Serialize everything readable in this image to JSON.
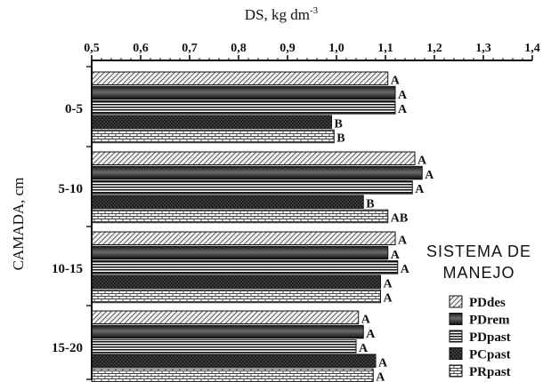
{
  "chart_data": {
    "type": "bar",
    "orientation": "horizontal",
    "xlabel": "DS, kg dm",
    "xlabel_superscript": "-3",
    "ylabel": "CAMADA, cm",
    "xlim": [
      0.5,
      1.4
    ],
    "xticks": [
      "0,5",
      "0,6",
      "0,7",
      "0,8",
      "0,9",
      "1,0",
      "1,1",
      "1,2",
      "1,3",
      "1,4"
    ],
    "x_axis_position": "top",
    "categories": [
      "0-5",
      "5-10",
      "10-15",
      "15-20"
    ],
    "legend_title_lines": [
      "SISTEMA DE",
      "MANEJO"
    ],
    "legend_placement": "right",
    "series": [
      {
        "name": "PDdes",
        "pattern": "diagonal-hatch",
        "values": [
          1.105,
          1.16,
          1.12,
          1.045
        ],
        "letters": [
          "A",
          "A",
          "A",
          "A"
        ]
      },
      {
        "name": "PDrem",
        "pattern": "dark-gradient",
        "values": [
          1.12,
          1.175,
          1.105,
          1.055
        ],
        "letters": [
          "A",
          "A",
          "A",
          "A"
        ]
      },
      {
        "name": "PDpast",
        "pattern": "horizontal-lines",
        "values": [
          1.12,
          1.155,
          1.125,
          1.04
        ],
        "letters": [
          "A",
          "A",
          "A",
          "A"
        ]
      },
      {
        "name": "PCpast",
        "pattern": "dark-dotted",
        "values": [
          0.99,
          1.055,
          1.09,
          1.08
        ],
        "letters": [
          "B",
          "B",
          "A",
          "A"
        ]
      },
      {
        "name": "PRpast",
        "pattern": "brick",
        "values": [
          0.995,
          1.105,
          1.09,
          1.075
        ],
        "letters": [
          "B",
          "AB",
          "A",
          "A"
        ]
      }
    ]
  }
}
